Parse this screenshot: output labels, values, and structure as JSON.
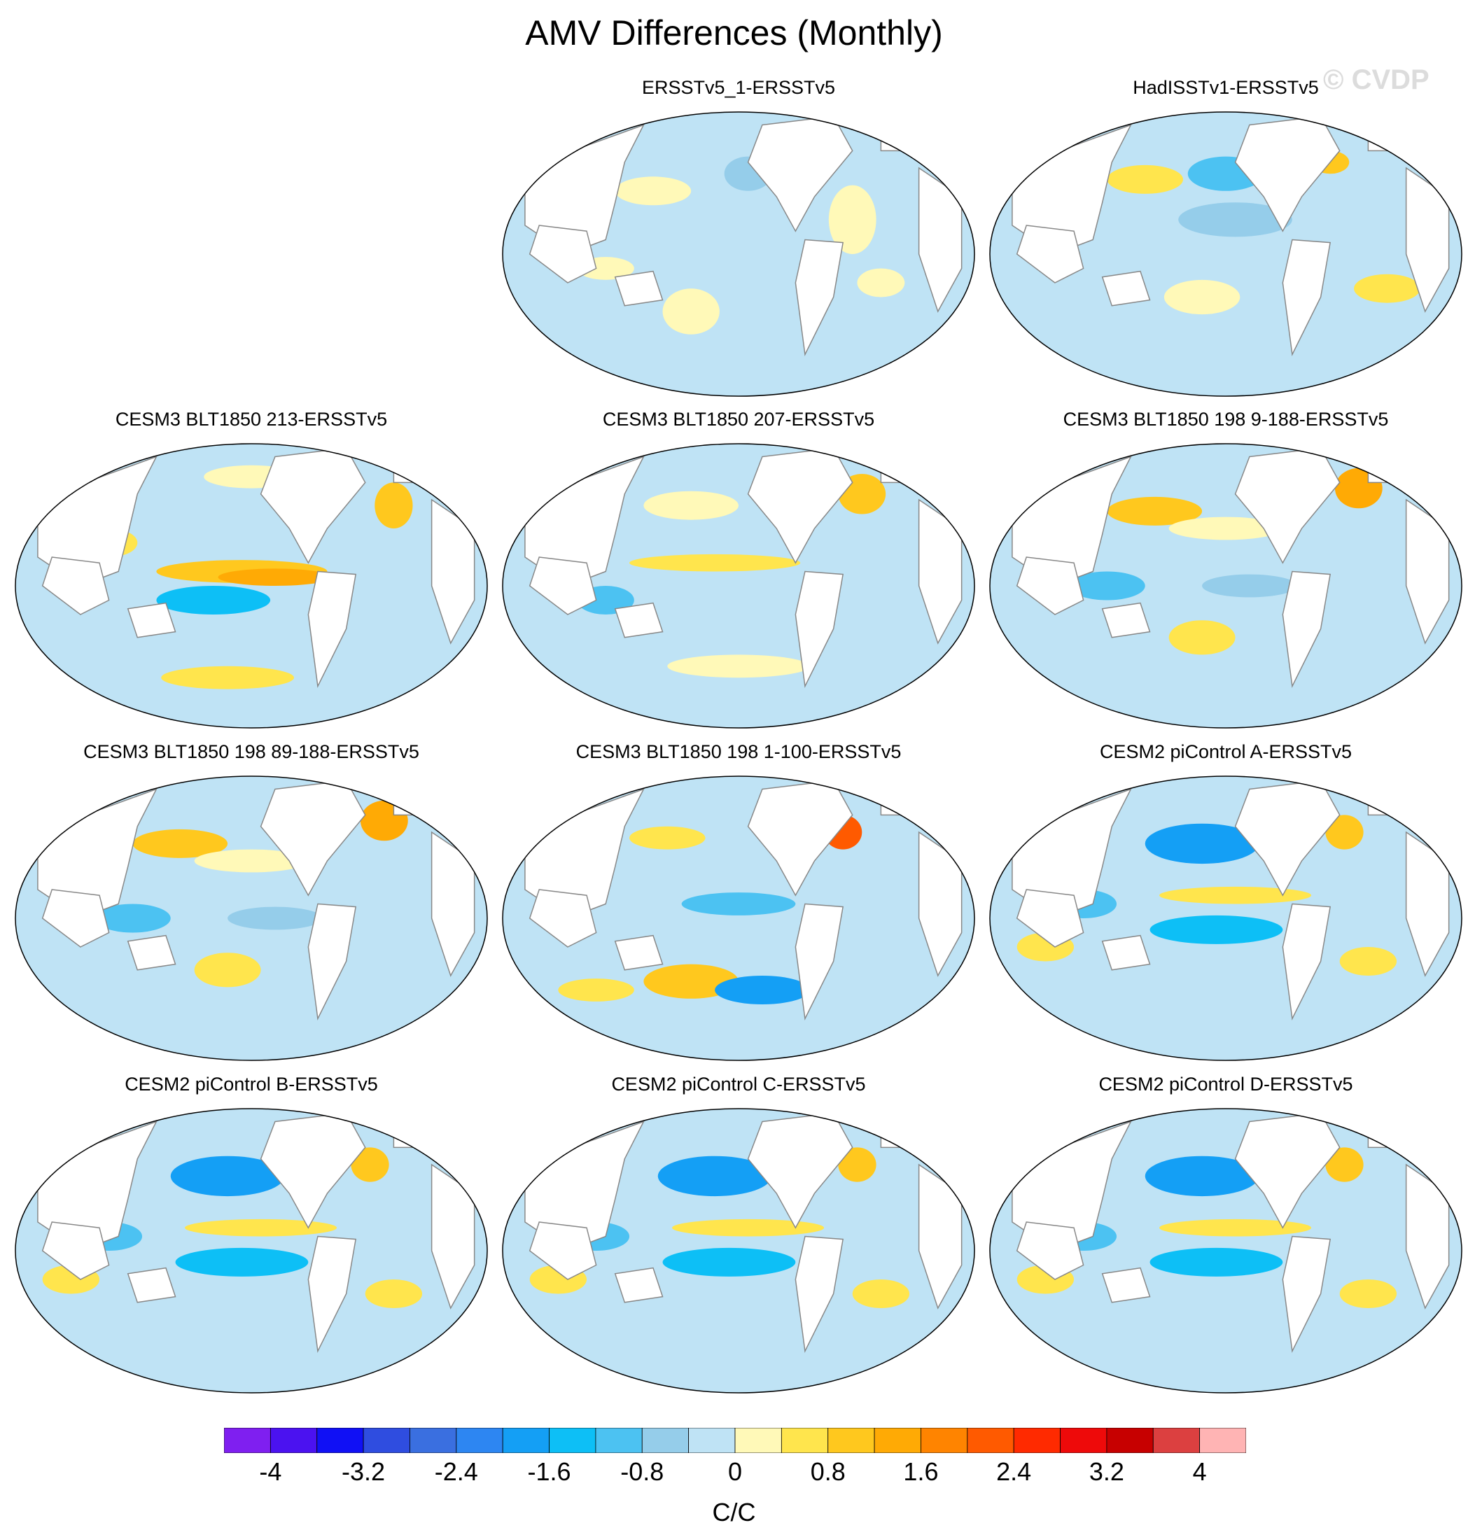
{
  "title": "AMV Differences (Monthly)",
  "watermark": "© CVDP",
  "panels": [
    {
      "title": "ERSSTv5_1-ERSSTv5",
      "col": 1,
      "row": 0,
      "pattern": "obs1"
    },
    {
      "title": "HadISSTv1-ERSSTv5",
      "col": 2,
      "row": 0,
      "pattern": "obs2"
    },
    {
      "title": "CESM3 BLT1850 213-ERSSTv5",
      "col": 0,
      "row": 1,
      "pattern": "elnino"
    },
    {
      "title": "CESM3 BLT1850 207-ERSSTv5",
      "col": 1,
      "row": 1,
      "pattern": "mild"
    },
    {
      "title": "CESM3 BLT1850 198 9-188-ERSSTv5",
      "col": 2,
      "row": 1,
      "pattern": "npac"
    },
    {
      "title": "CESM3 BLT1850 198 89-188-ERSSTv5",
      "col": 0,
      "row": 2,
      "pattern": "npac"
    },
    {
      "title": "CESM3 BLT1850 198 1-100-ERSSTv5",
      "col": 1,
      "row": 2,
      "pattern": "south"
    },
    {
      "title": "CESM2 piControl A-ERSSTv5",
      "col": 2,
      "row": 2,
      "pattern": "cesm2"
    },
    {
      "title": "CESM2 piControl B-ERSSTv5",
      "col": 0,
      "row": 3,
      "pattern": "cesm2"
    },
    {
      "title": "CESM2 piControl C-ERSSTv5",
      "col": 1,
      "row": 3,
      "pattern": "cesm2"
    },
    {
      "title": "CESM2 piControl D-ERSSTv5",
      "col": 2,
      "row": 3,
      "pattern": "cesm2"
    }
  ],
  "colorbar": {
    "colors": [
      "#7f1ff0",
      "#4b12f0",
      "#1010f5",
      "#2f4de0",
      "#3a6fe0",
      "#2d86f2",
      "#149ff5",
      "#0dbff6",
      "#4cc2f2",
      "#95cdea",
      "#bfe3f5",
      "#fff9b8",
      "#ffe54d",
      "#ffc81e",
      "#ffaa05",
      "#ff8400",
      "#ff5a00",
      "#ff2a00",
      "#ee0a0a",
      "#c70000",
      "#dc4040",
      "#ffb4b4"
    ],
    "labels": [
      "-4",
      "-3.2",
      "-2.4",
      "-1.6",
      "-0.8",
      "0",
      "0.8",
      "1.6",
      "2.4",
      "3.2",
      "4"
    ],
    "units": "C/C"
  },
  "colors": {
    "ocean_base": "#bfe3f5",
    "land": "#ffffff",
    "coast": "#888888"
  }
}
